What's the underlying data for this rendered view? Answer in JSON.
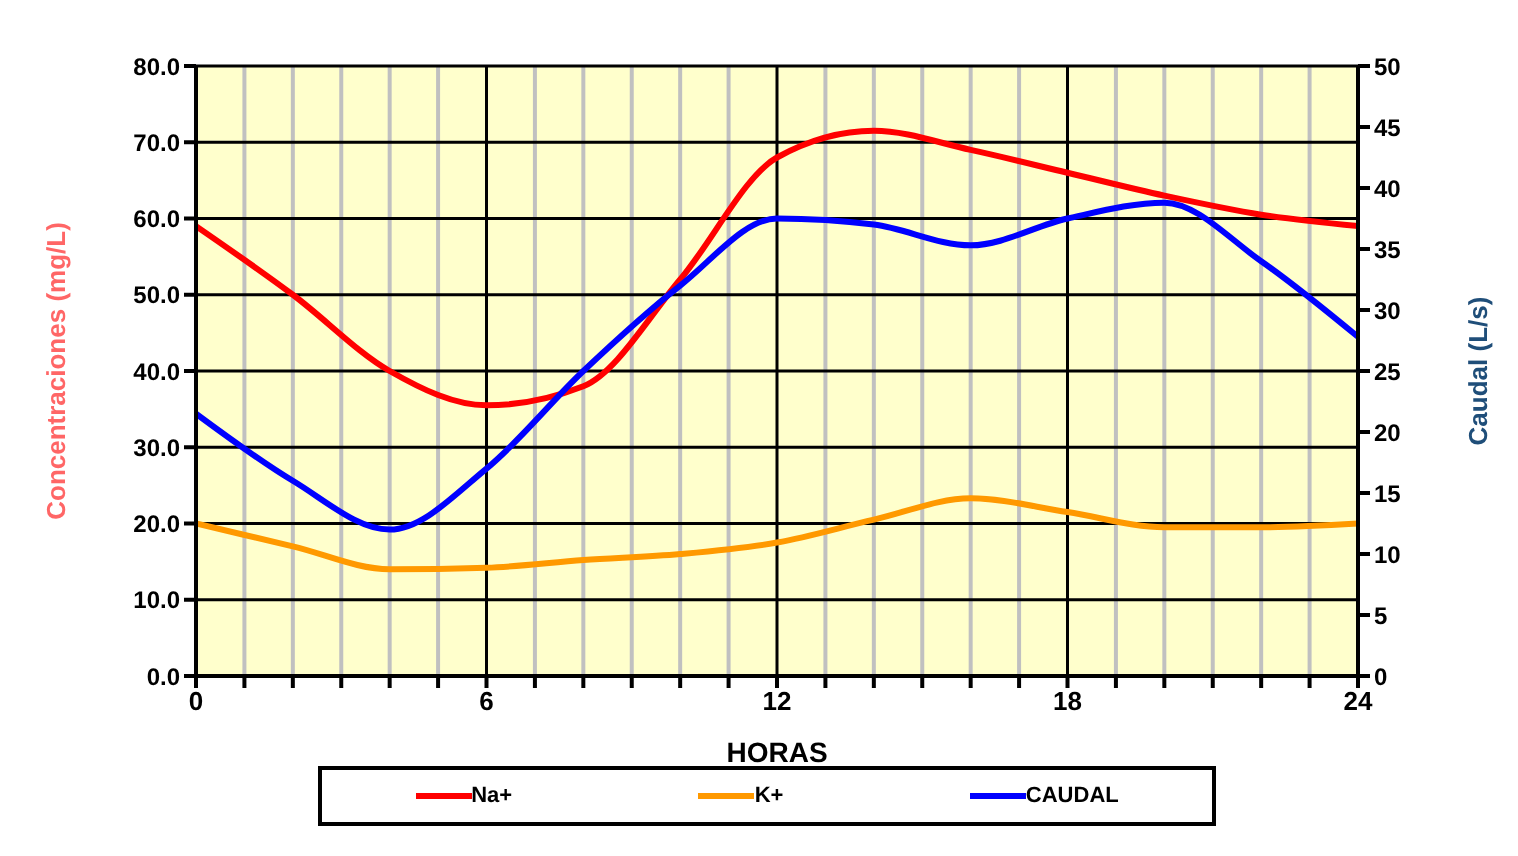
{
  "chart_data": {
    "type": "line",
    "xlabel": "HORAS",
    "ylabel": "Concentraciones (mg/L)",
    "y2label": "Caudal (L/s)",
    "x": [
      0,
      2,
      4,
      6,
      8,
      10,
      12,
      14,
      16,
      18,
      20,
      22,
      24
    ],
    "series": [
      {
        "name": "Na+",
        "color": "#ff0000",
        "values": [
          59,
          50,
          40,
          35.5,
          38,
          52,
          68,
          71.5,
          69,
          66,
          63,
          60.5,
          59
        ]
      },
      {
        "name": "K+",
        "color": "#ff9900",
        "values": [
          20,
          17,
          14,
          14.2,
          15.2,
          16,
          17.5,
          20.5,
          23.3,
          21.5,
          19.5,
          19.5,
          20
        ]
      },
      {
        "name": "CAUDAL",
        "color": "#0000ff",
        "axis": "y2",
        "values": [
          21.5,
          16,
          12,
          17,
          25,
          32,
          37.5,
          37,
          35.3,
          37.5,
          38.8,
          34,
          27.8
        ]
      }
    ],
    "xlim": [
      0,
      24
    ],
    "xticks": [
      0,
      {
        "value": 1,
        "label": null
      },
      {
        "value": 2,
        "label": null
      },
      {
        "value": 3,
        "label": null
      },
      {
        "value": 4,
        "label": null
      },
      {
        "value": 5,
        "label": null
      },
      6,
      {
        "value": 7,
        "label": null
      },
      {
        "value": 8,
        "label": null
      },
      {
        "value": 9,
        "label": null
      },
      {
        "value": 10,
        "label": null
      },
      {
        "value": 11,
        "label": null
      },
      12,
      {
        "value": 13,
        "label": null
      },
      {
        "value": 14,
        "label": null
      },
      {
        "value": 15,
        "label": null
      },
      {
        "value": 16,
        "label": null
      },
      {
        "value": 17,
        "label": null
      },
      18,
      {
        "value": 19,
        "label": null
      },
      {
        "value": 20,
        "label": null
      },
      {
        "value": 21,
        "label": null
      },
      {
        "value": 22,
        "label": null
      },
      {
        "value": 23,
        "label": null
      },
      24
    ],
    "ylim": [
      0,
      80
    ],
    "yticks": [
      {
        "value": 0,
        "label": "0.0"
      },
      {
        "value": 10,
        "label": "10.0"
      },
      {
        "value": 20,
        "label": "20.0"
      },
      {
        "value": 30,
        "label": "30.0"
      },
      {
        "value": 40,
        "label": "40.0"
      },
      {
        "value": 50,
        "label": "50.0"
      },
      {
        "value": 60,
        "label": "60.0"
      },
      {
        "value": 70,
        "label": "70.0"
      },
      {
        "value": 80,
        "label": "80.0"
      }
    ],
    "y2lim": [
      0,
      50
    ],
    "y2ticks": [
      0,
      5,
      10,
      15,
      20,
      25,
      30,
      35,
      40,
      45,
      50
    ],
    "grid": true,
    "legend": "bottom",
    "marker": "none",
    "line_style": "solid"
  }
}
